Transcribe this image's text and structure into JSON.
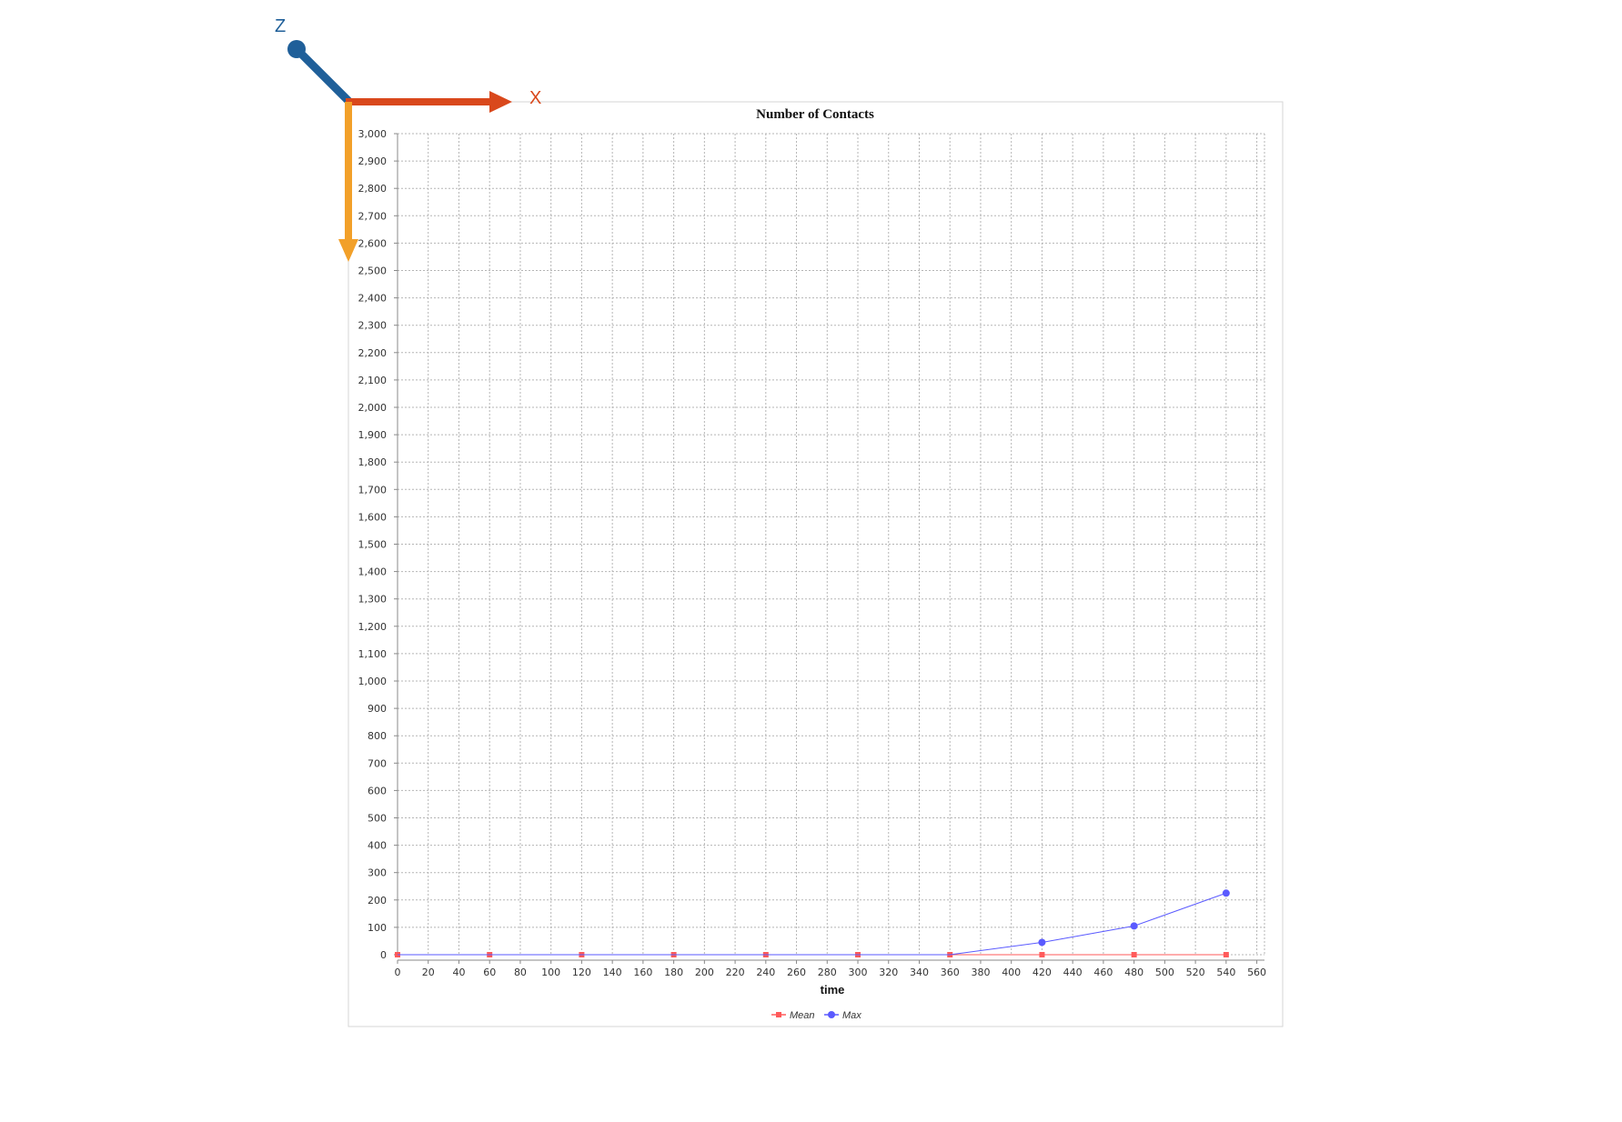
{
  "overlay": {
    "x_label": "X",
    "z_label": "Z",
    "x_color": "#d9481c",
    "y_color": "#f2a029",
    "z_color": "#1f5f99"
  },
  "chart_data": {
    "type": "line",
    "title": "Number of Contacts",
    "xlabel": "time",
    "ylabel": "",
    "xlim": [
      0,
      565
    ],
    "ylim": [
      0,
      3000
    ],
    "x_ticks": [
      0,
      20,
      40,
      60,
      80,
      100,
      120,
      140,
      160,
      180,
      200,
      220,
      240,
      260,
      280,
      300,
      320,
      340,
      360,
      380,
      400,
      420,
      440,
      460,
      480,
      500,
      520,
      540,
      560
    ],
    "y_ticks": [
      0,
      100,
      200,
      300,
      400,
      500,
      600,
      700,
      800,
      900,
      1000,
      1100,
      1200,
      1300,
      1400,
      1500,
      1600,
      1700,
      1800,
      1900,
      2000,
      2100,
      2200,
      2300,
      2400,
      2500,
      2600,
      2700,
      2800,
      2900,
      3000
    ],
    "grid": true,
    "legend_position": "bottom-center",
    "series": [
      {
        "name": "Mean",
        "color": "#ff5a5a",
        "marker": "square",
        "x": [
          0,
          60,
          120,
          180,
          240,
          300,
          360,
          420,
          480,
          540
        ],
        "y": [
          0,
          0,
          0,
          0,
          0,
          0,
          0,
          0,
          0,
          0
        ]
      },
      {
        "name": "Max",
        "color": "#5a5aff",
        "marker": "circle",
        "x": [
          0,
          60,
          120,
          180,
          240,
          300,
          360,
          420,
          480,
          540
        ],
        "y": [
          0,
          0,
          0,
          0,
          0,
          0,
          0,
          45,
          105,
          225
        ]
      }
    ]
  }
}
